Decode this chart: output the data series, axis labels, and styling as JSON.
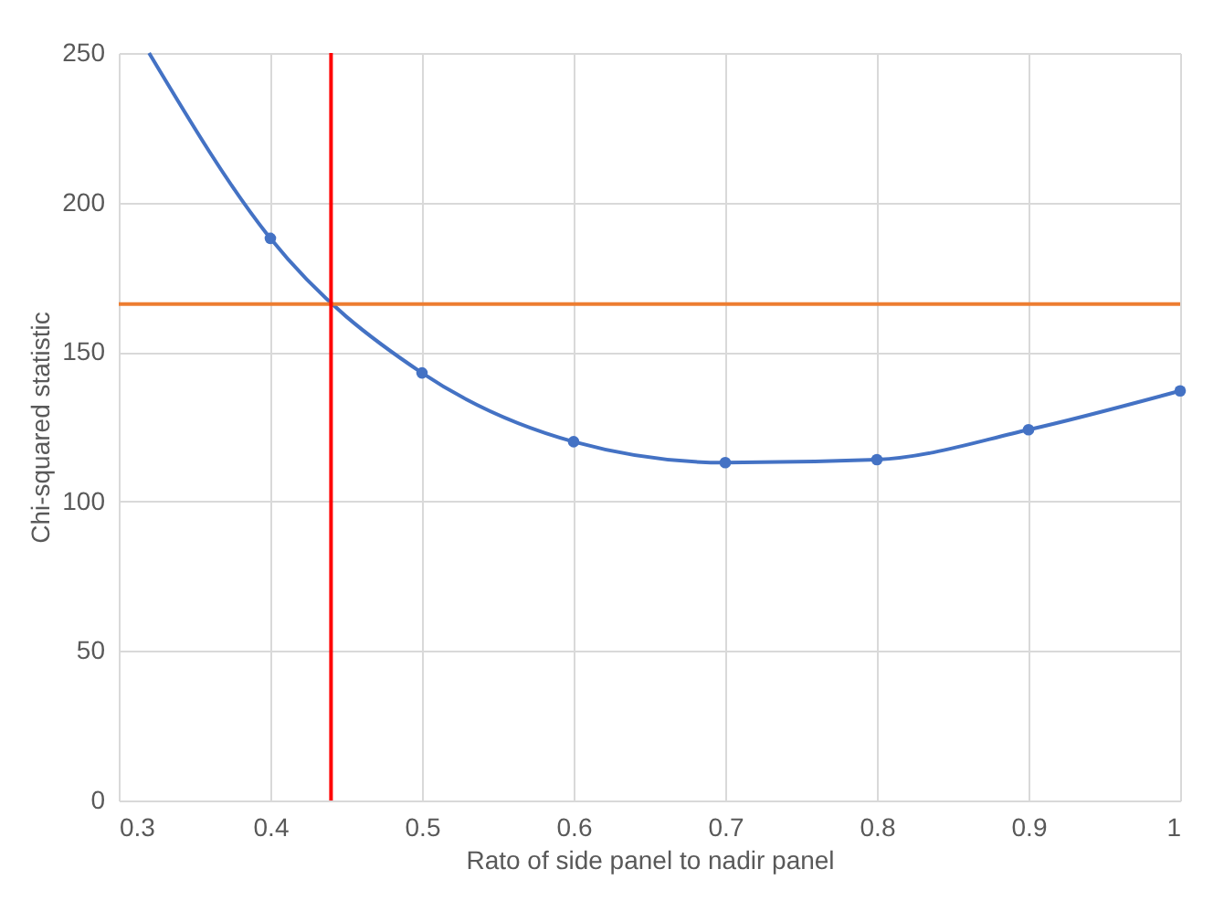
{
  "chart_data": {
    "type": "line",
    "xlabel": "Rato of side panel to nadir panel",
    "ylabel": "Chi-squared statistic",
    "xlim": [
      0.3,
      1
    ],
    "xticks": [
      {
        "value": 0.3,
        "label": "0.3"
      },
      {
        "value": 0.4,
        "label": "0.4"
      },
      {
        "value": 0.5,
        "label": "0.5"
      },
      {
        "value": 0.6,
        "label": "0.6"
      },
      {
        "value": 0.7,
        "label": "0.7"
      },
      {
        "value": 0.8,
        "label": "0.8"
      },
      {
        "value": 0.9,
        "label": "0.9"
      },
      1
    ],
    "ylim": [
      0,
      250
    ],
    "yticks": [
      0,
      50,
      100,
      150,
      200,
      250
    ],
    "grid": true,
    "series": [
      {
        "marker": "none",
        "color": "#4472c4",
        "x": [
          0.32,
          0.4,
          0.5,
          0.6,
          0.7,
          0.8,
          0.9,
          1.0
        ],
        "values": [
          250,
          188,
          143,
          120,
          113,
          114,
          124,
          137
        ]
      },
      {
        "type": "scatter",
        "marker": "circle",
        "color": "#4472c4",
        "x": [
          0.4,
          0.5,
          0.6,
          0.7,
          0.8,
          0.9,
          1.0
        ],
        "values": [
          188,
          143,
          120,
          113,
          114,
          124,
          137
        ]
      }
    ],
    "ref_lines": [
      {
        "axis": "y",
        "value": 166,
        "color": "#ed7d31"
      },
      {
        "axis": "x",
        "value": 0.44,
        "color": "#ff0000"
      }
    ]
  }
}
